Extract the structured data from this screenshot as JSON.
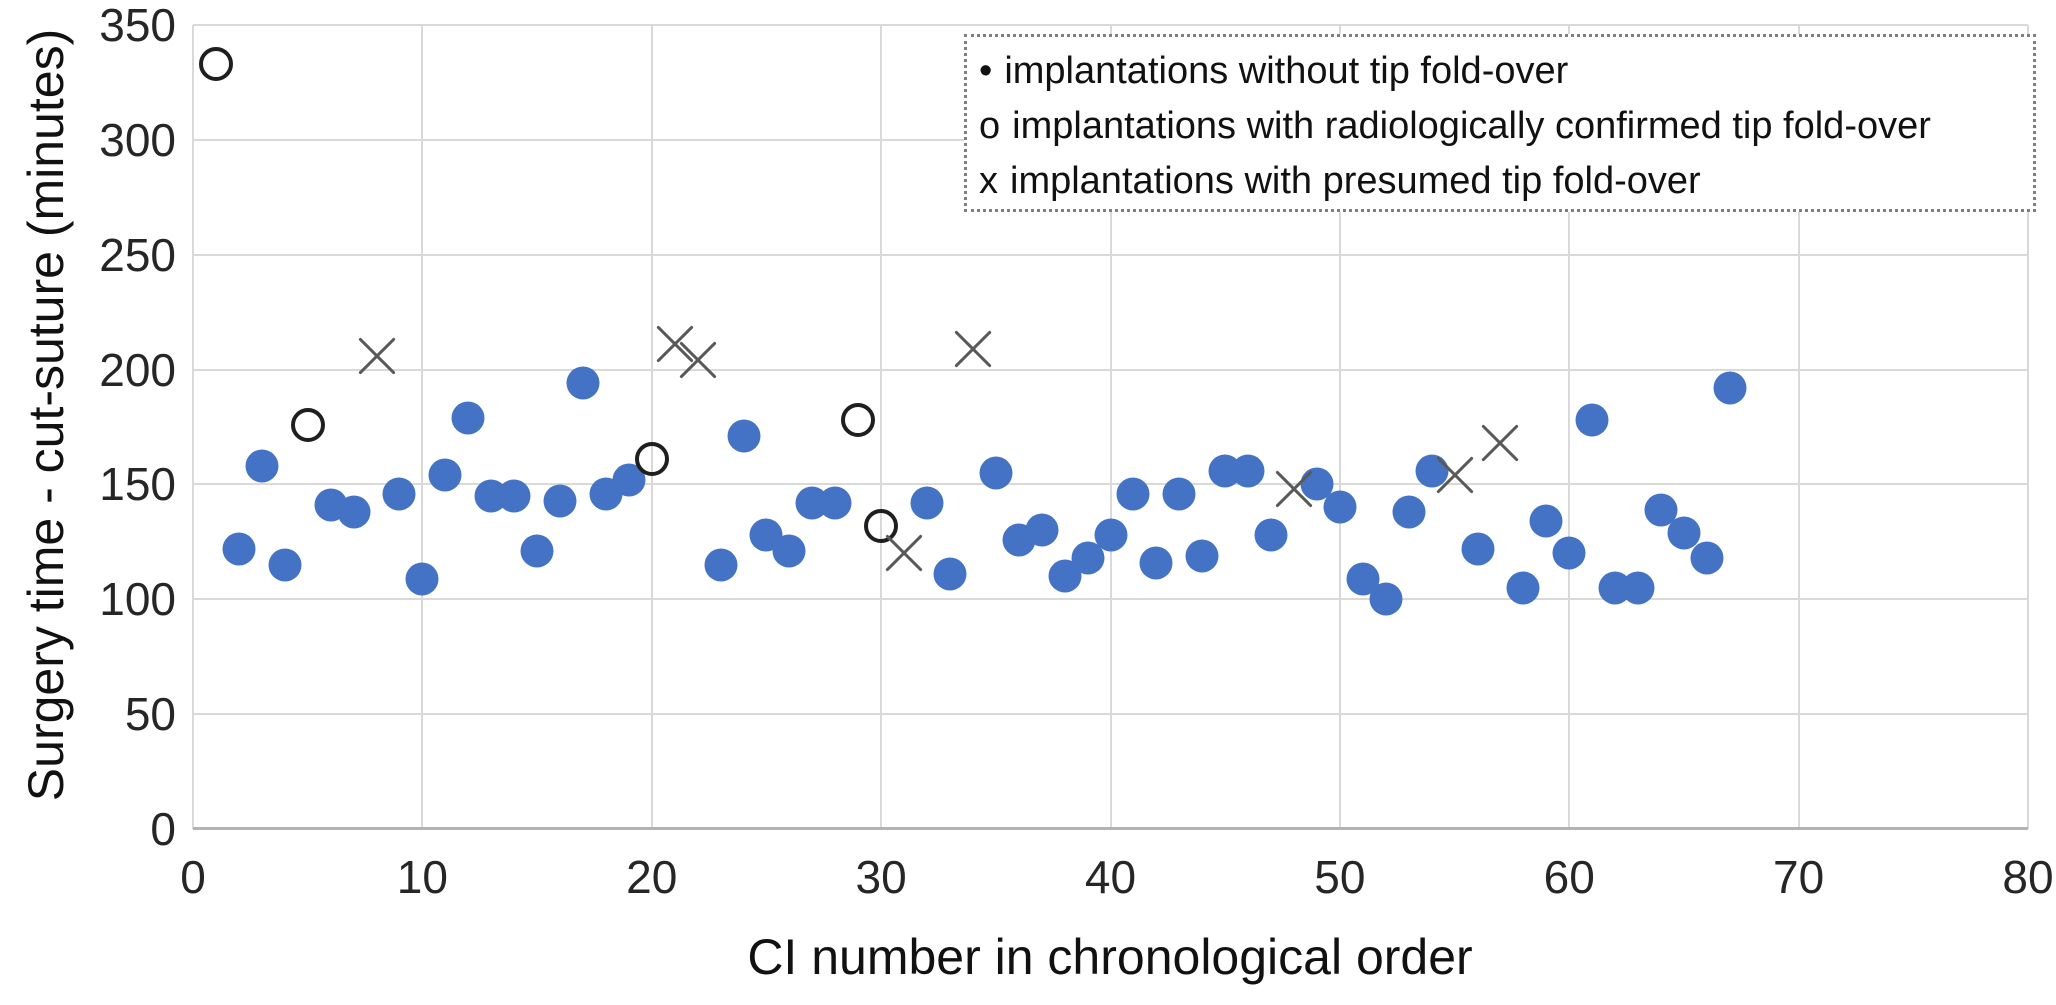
{
  "chart_data": {
    "type": "scatter",
    "title": "",
    "xlabel": "CI number in chronological order",
    "ylabel": "Surgery time - cut-suture (minutes)",
    "xlim": [
      0,
      80
    ],
    "ylim": [
      0,
      350
    ],
    "x_ticks": [
      0,
      10,
      20,
      30,
      40,
      50,
      60,
      70,
      80
    ],
    "y_ticks": [
      0,
      50,
      100,
      150,
      200,
      250,
      300,
      350
    ],
    "grid": true,
    "legend_position": "top-right",
    "colors": {
      "grid": "#d9d9d9",
      "axis": "#b3b3b3",
      "text": "#262626"
    },
    "series": [
      {
        "name": "implantations without tip fold-over",
        "legend_marker": "•",
        "marker": "filled-circle",
        "color": "#4472C4",
        "points": [
          [
            2,
            122
          ],
          [
            3,
            158
          ],
          [
            4,
            115
          ],
          [
            6,
            141
          ],
          [
            7,
            138
          ],
          [
            9,
            146
          ],
          [
            10,
            109
          ],
          [
            11,
            154
          ],
          [
            12,
            179
          ],
          [
            13,
            145
          ],
          [
            14,
            145
          ],
          [
            15,
            121
          ],
          [
            16,
            143
          ],
          [
            17,
            194
          ],
          [
            18,
            146
          ],
          [
            19,
            152
          ],
          [
            23,
            115
          ],
          [
            24,
            171
          ],
          [
            25,
            128
          ],
          [
            26,
            121
          ],
          [
            27,
            142
          ],
          [
            28,
            142
          ],
          [
            32,
            142
          ],
          [
            33,
            111
          ],
          [
            35,
            155
          ],
          [
            36,
            126
          ],
          [
            37,
            130
          ],
          [
            38,
            110
          ],
          [
            39,
            118
          ],
          [
            40,
            128
          ],
          [
            41,
            146
          ],
          [
            42,
            116
          ],
          [
            43,
            146
          ],
          [
            44,
            119
          ],
          [
            45,
            156
          ],
          [
            46,
            156
          ],
          [
            47,
            128
          ],
          [
            49,
            150
          ],
          [
            50,
            140
          ],
          [
            51,
            109
          ],
          [
            52,
            100
          ],
          [
            53,
            138
          ],
          [
            54,
            156
          ],
          [
            56,
            122
          ],
          [
            58,
            105
          ],
          [
            59,
            134
          ],
          [
            60,
            120
          ],
          [
            61,
            178
          ],
          [
            62,
            105
          ],
          [
            63,
            105
          ],
          [
            64,
            139
          ],
          [
            65,
            129
          ],
          [
            66,
            118
          ],
          [
            67,
            192
          ]
        ]
      },
      {
        "name": "implantations with radiologically confirmed tip fold-over",
        "legend_marker": "o",
        "marker": "open-circle",
        "color": "#1f1f1f",
        "points": [
          [
            1,
            333
          ],
          [
            5,
            176
          ],
          [
            20,
            161
          ],
          [
            29,
            178
          ],
          [
            30,
            132
          ]
        ]
      },
      {
        "name": "implantations with presumed tip fold-over",
        "legend_marker": "x",
        "marker": "x",
        "color": "#595959",
        "points": [
          [
            8,
            206
          ],
          [
            21,
            211
          ],
          [
            22,
            204
          ],
          [
            31,
            120
          ],
          [
            34,
            209
          ],
          [
            48,
            148
          ],
          [
            55,
            154
          ],
          [
            57,
            168
          ]
        ]
      }
    ]
  }
}
